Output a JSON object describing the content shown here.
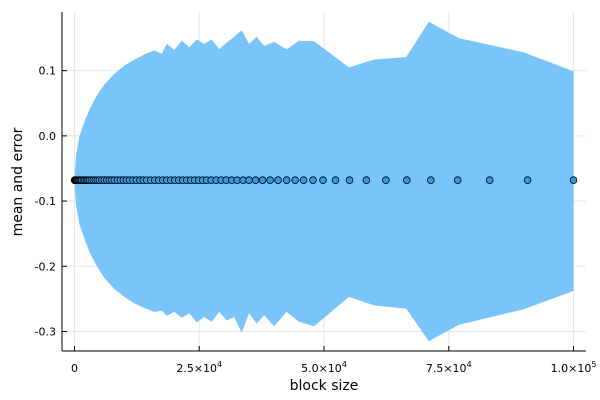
{
  "chart_data": {
    "type": "scatter",
    "title": "",
    "xlabel": "block size",
    "ylabel": "mean and error",
    "xlim": [
      -2500,
      102500
    ],
    "ylim": [
      -0.33,
      0.19
    ],
    "grid": true,
    "legend": "none",
    "x_ticks": [
      {
        "value": 0,
        "label": "0"
      },
      {
        "value": 25000,
        "label": "2.5×10",
        "exp": "4"
      },
      {
        "value": 50000,
        "label": "5.0×10",
        "exp": "4"
      },
      {
        "value": 75000,
        "label": "7.5×10",
        "exp": "4"
      },
      {
        "value": 100000,
        "label": "1.0×10",
        "exp": "5"
      }
    ],
    "y_ticks": [
      {
        "value": 0.1,
        "label": "0.1"
      },
      {
        "value": 0.0,
        "label": "0.0"
      },
      {
        "value": -0.1,
        "label": "-0.1"
      },
      {
        "value": -0.2,
        "label": "-0.2"
      },
      {
        "value": -0.3,
        "label": "-0.3"
      }
    ],
    "mean": -0.068,
    "points_x": [
      16,
      50,
      100,
      200,
      300,
      400,
      500,
      700,
      900,
      1100,
      1300,
      1500,
      1800,
      2100,
      2400,
      2700,
      3000,
      3400,
      3800,
      4200,
      4600,
      5000,
      5500,
      6000,
      6500,
      7000,
      7500,
      8000,
      8600,
      9200,
      9800,
      10400,
      11000,
      11700,
      12400,
      13100,
      13800,
      14500,
      15300,
      16100,
      16900,
      17700,
      18500,
      19300,
      20100,
      20900,
      21700,
      22500,
      23300,
      24100,
      24900,
      25700,
      26500,
      27400,
      28400,
      29400,
      30400,
      31500,
      32600,
      33800,
      35000,
      36300,
      37700,
      39200,
      40800,
      42500,
      44200,
      45900,
      47800,
      49800,
      52300,
      55100,
      58500,
      62400,
      66600,
      71400,
      76800,
      83200,
      90800,
      100000
    ],
    "band": [
      {
        "x": 0,
        "upper": -0.068,
        "lower": -0.068
      },
      {
        "x": 300,
        "upper": -0.03,
        "lower": -0.106
      },
      {
        "x": 1000,
        "upper": 0.0,
        "lower": -0.136
      },
      {
        "x": 2000,
        "upper": 0.022,
        "lower": -0.158
      },
      {
        "x": 3000,
        "upper": 0.04,
        "lower": -0.178
      },
      {
        "x": 4500,
        "upper": 0.062,
        "lower": -0.2
      },
      {
        "x": 6000,
        "upper": 0.079,
        "lower": -0.218
      },
      {
        "x": 8000,
        "upper": 0.095,
        "lower": -0.235
      },
      {
        "x": 10000,
        "upper": 0.108,
        "lower": -0.247
      },
      {
        "x": 12000,
        "upper": 0.117,
        "lower": -0.257
      },
      {
        "x": 14000,
        "upper": 0.125,
        "lower": -0.264
      },
      {
        "x": 16000,
        "upper": 0.131,
        "lower": -0.27
      },
      {
        "x": 17500,
        "upper": 0.126,
        "lower": -0.268
      },
      {
        "x": 18500,
        "upper": 0.141,
        "lower": -0.276
      },
      {
        "x": 20000,
        "upper": 0.132,
        "lower": -0.27
      },
      {
        "x": 21500,
        "upper": 0.146,
        "lower": -0.279
      },
      {
        "x": 23000,
        "upper": 0.136,
        "lower": -0.272
      },
      {
        "x": 24500,
        "upper": 0.148,
        "lower": -0.286
      },
      {
        "x": 26000,
        "upper": 0.141,
        "lower": -0.278
      },
      {
        "x": 27500,
        "upper": 0.148,
        "lower": -0.285
      },
      {
        "x": 29000,
        "upper": 0.133,
        "lower": -0.27
      },
      {
        "x": 30500,
        "upper": 0.143,
        "lower": -0.283
      },
      {
        "x": 32000,
        "upper": 0.152,
        "lower": -0.278
      },
      {
        "x": 33500,
        "upper": 0.162,
        "lower": -0.302
      },
      {
        "x": 35000,
        "upper": 0.141,
        "lower": -0.272
      },
      {
        "x": 36500,
        "upper": 0.152,
        "lower": -0.288
      },
      {
        "x": 38000,
        "upper": 0.138,
        "lower": -0.275
      },
      {
        "x": 40000,
        "upper": 0.144,
        "lower": -0.292
      },
      {
        "x": 42500,
        "upper": 0.133,
        "lower": -0.27
      },
      {
        "x": 45000,
        "upper": 0.146,
        "lower": -0.285
      },
      {
        "x": 48000,
        "upper": 0.145,
        "lower": -0.292
      },
      {
        "x": 55000,
        "upper": 0.105,
        "lower": -0.247
      },
      {
        "x": 60000,
        "upper": 0.117,
        "lower": -0.26
      },
      {
        "x": 66500,
        "upper": 0.121,
        "lower": -0.265
      },
      {
        "x": 71000,
        "upper": 0.175,
        "lower": -0.315
      },
      {
        "x": 77000,
        "upper": 0.15,
        "lower": -0.29
      },
      {
        "x": 90000,
        "upper": 0.128,
        "lower": -0.266
      },
      {
        "x": 100000,
        "upper": 0.099,
        "lower": -0.238
      }
    ],
    "colors": {
      "band": "#79c4fa",
      "marker": "#2e9ce6",
      "marker_edge": "#000000",
      "axis": "#000000",
      "grid": "#e6e6e6",
      "background": "#ffffff"
    }
  }
}
